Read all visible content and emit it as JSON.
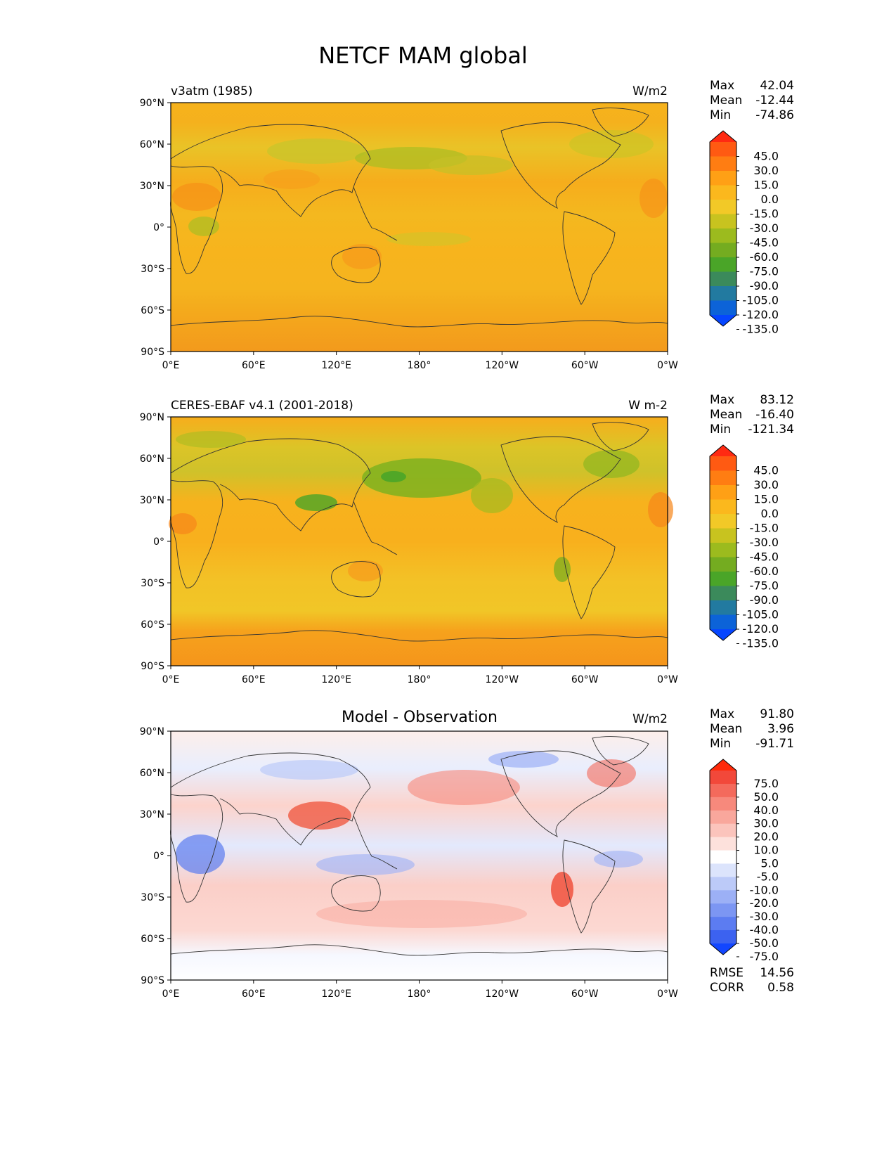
{
  "figure_title": "NETCF MAM global",
  "chart_data": [
    {
      "type": "heatmap",
      "title_left": "v3atm (1985)",
      "title_center": "",
      "units": "W/m2",
      "stats": [
        {
          "label": "Max",
          "value": "42.04"
        },
        {
          "label": "Mean",
          "value": "-12.44"
        },
        {
          "label": "Min",
          "value": "-74.86"
        }
      ],
      "extra_stats": [],
      "x_ticks": [
        "0°E",
        "60°E",
        "120°E",
        "180°",
        "120°W",
        "60°W",
        "0°W"
      ],
      "y_ticks": [
        "90°N",
        "60°N",
        "30°N",
        "0°",
        "30°S",
        "60°S",
        "90°S"
      ],
      "xlim": [
        0,
        360
      ],
      "ylim": [
        -90,
        90
      ],
      "colorbar": {
        "levels": [
          "45.0",
          "30.0",
          "15.0",
          "0.0",
          "-15.0",
          "-30.0",
          "-45.0",
          "-60.0",
          "-75.0",
          "-90.0",
          "-105.0",
          "-120.0",
          "-135.0"
        ],
        "colors": [
          "#ff2a12",
          "#ff5a12",
          "#ff7d12",
          "#ffa015",
          "#fbb81d",
          "#f2c927",
          "#c8c31f",
          "#9cbb1e",
          "#74ac20",
          "#4aa528",
          "#3b8a5b",
          "#227aa0",
          "#0c63d8",
          "#0545ff"
        ],
        "extend": "both"
      }
    },
    {
      "type": "heatmap",
      "title_left": "CERES-EBAF v4.1 (2001-2018)",
      "title_center": "",
      "units": "W m-2",
      "stats": [
        {
          "label": "Max",
          "value": "83.12"
        },
        {
          "label": "Mean",
          "value": "-16.40"
        },
        {
          "label": "Min",
          "value": "-121.34"
        }
      ],
      "extra_stats": [],
      "x_ticks": [
        "0°E",
        "60°E",
        "120°E",
        "180°",
        "120°W",
        "60°W",
        "0°W"
      ],
      "y_ticks": [
        "90°N",
        "60°N",
        "30°N",
        "0°",
        "30°S",
        "60°S",
        "90°S"
      ],
      "xlim": [
        0,
        360
      ],
      "ylim": [
        -90,
        90
      ],
      "colorbar": {
        "levels": [
          "45.0",
          "30.0",
          "15.0",
          "0.0",
          "-15.0",
          "-30.0",
          "-45.0",
          "-60.0",
          "-75.0",
          "-90.0",
          "-105.0",
          "-120.0",
          "-135.0"
        ],
        "colors": [
          "#ff2a12",
          "#ff5a12",
          "#ff7d12",
          "#ffa015",
          "#fbb81d",
          "#f2c927",
          "#c8c31f",
          "#9cbb1e",
          "#74ac20",
          "#4aa528",
          "#3b8a5b",
          "#227aa0",
          "#0c63d8",
          "#0545ff"
        ],
        "extend": "both"
      }
    },
    {
      "type": "heatmap",
      "title_left": "",
      "title_center": "Model - Observation",
      "units": "W/m2",
      "stats": [
        {
          "label": "Max",
          "value": "91.80"
        },
        {
          "label": "Mean",
          "value": "3.96"
        },
        {
          "label": "Min",
          "value": "-91.71"
        }
      ],
      "extra_stats": [
        {
          "label": "RMSE",
          "value": "14.56"
        },
        {
          "label": "CORR",
          "value": "0.58"
        }
      ],
      "x_ticks": [
        "0°E",
        "60°E",
        "120°E",
        "180°",
        "120°W",
        "60°W",
        "0°W"
      ],
      "y_ticks": [
        "90°N",
        "60°N",
        "30°N",
        "0°",
        "30°S",
        "60°S",
        "90°S"
      ],
      "xlim": [
        0,
        360
      ],
      "ylim": [
        -90,
        90
      ],
      "colorbar": {
        "levels": [
          "75.0",
          "50.0",
          "40.0",
          "30.0",
          "20.0",
          "10.0",
          "5.0",
          "-5.0",
          "-10.0",
          "-20.0",
          "-30.0",
          "-40.0",
          "-50.0",
          "-75.0"
        ],
        "colors": [
          "#ff2a0a",
          "#f2483a",
          "#f46a5c",
          "#f7897c",
          "#f9a79c",
          "#fbc4bc",
          "#fde1dc",
          "#ffffff",
          "#dce4fc",
          "#bccaf8",
          "#9cb0f6",
          "#7c96f3",
          "#5c7cf1",
          "#3c62f0",
          "#1246ff"
        ],
        "extend": "both"
      }
    }
  ]
}
